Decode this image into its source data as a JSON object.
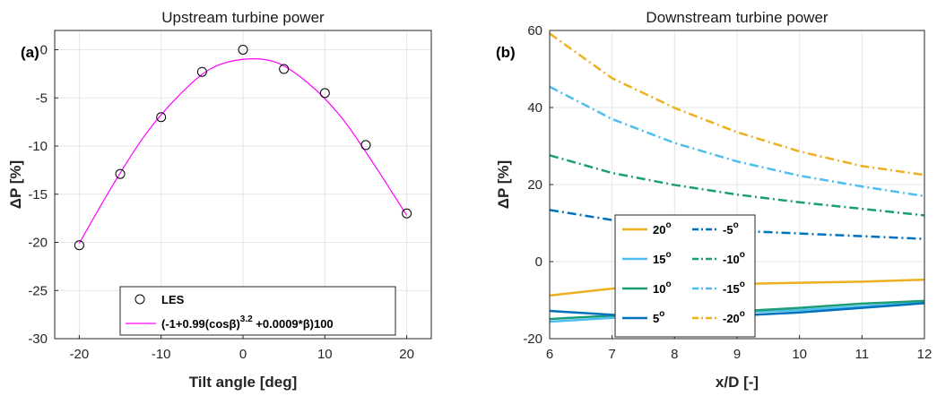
{
  "chart_data": [
    {
      "type": "scatter",
      "panel_label": "(a)",
      "title": "Upstream turbine power",
      "xlabel": "Tilt angle [deg]",
      "ylabel": "ΔP [%]",
      "xlim": [
        -23,
        23
      ],
      "ylim": [
        -30,
        2
      ],
      "xticks": [
        -20,
        -10,
        0,
        10,
        20
      ],
      "yticks": [
        0,
        -5,
        -10,
        -15,
        -20,
        -25,
        -30
      ],
      "grid": true,
      "legend_position": "bottom",
      "series": [
        {
          "name": "LES",
          "kind": "markers",
          "marker": "circle",
          "color": "#000000",
          "x": [
            -20,
            -15,
            -10,
            -5,
            0,
            5,
            10,
            15,
            20
          ],
          "y": [
            -20.3,
            -12.9,
            -7.0,
            -2.3,
            0.0,
            -2.0,
            -4.5,
            -9.9,
            -17.0
          ]
        },
        {
          "name": "(-1+0.99(cosβ)3.2 +0.0009*β)100",
          "name_base": "(-1+0.99(cosβ)",
          "name_sup": "3.2",
          "name_tail": " +0.0009*β)100",
          "kind": "line",
          "color": "#ff00ff",
          "x": [
            -20,
            -16,
            -12,
            -8,
            -4,
            0,
            4,
            8,
            12,
            16,
            20
          ],
          "y": [
            -20.1,
            -14.2,
            -8.9,
            -4.9,
            -2.0,
            -1.0,
            -1.3,
            -3.5,
            -7.0,
            -11.9,
            -17.2
          ]
        }
      ]
    },
    {
      "type": "line",
      "panel_label": "(b)",
      "title": "Downstream turbine power",
      "xlabel": "x/D [-]",
      "ylabel": "ΔP [%]",
      "xlim": [
        6,
        12
      ],
      "ylim": [
        -20,
        60
      ],
      "xticks": [
        6,
        7,
        8,
        9,
        10,
        11,
        12
      ],
      "yticks": [
        60,
        40,
        20,
        0,
        -20
      ],
      "grid": true,
      "legend_position": "lower-left inside",
      "x": [
        6,
        7,
        8,
        9,
        10,
        11,
        12
      ],
      "series": [
        {
          "name": "20",
          "color": "#EDB120",
          "dash": "solid",
          "values": [
            -8.8,
            -7.0,
            -6.3,
            -5.8,
            -5.5,
            -5.2,
            -4.7
          ]
        },
        {
          "name": "15",
          "color": "#4DBEEE",
          "dash": "solid",
          "values": [
            -15.6,
            -14.6,
            -13.9,
            -13.2,
            -12.6,
            -11.6,
            -10.6
          ]
        },
        {
          "name": "10",
          "color": "#1B9E77",
          "dash": "solid",
          "values": [
            -14.9,
            -14.0,
            -13.4,
            -12.9,
            -12.0,
            -10.9,
            -10.2
          ]
        },
        {
          "name": "5",
          "color": "#0072BD",
          "dash": "solid",
          "values": [
            -12.8,
            -13.8,
            -14.3,
            -14.0,
            -13.2,
            -12.0,
            -10.8
          ]
        },
        {
          "name": "-5",
          "color": "#0072BD",
          "dash": "dashdot",
          "values": [
            13.4,
            10.8,
            9.2,
            8.0,
            7.3,
            6.6,
            5.9
          ]
        },
        {
          "name": "-10",
          "color": "#1B9E77",
          "dash": "dashdot",
          "values": [
            27.6,
            23.0,
            19.9,
            17.4,
            15.4,
            13.7,
            12.0
          ]
        },
        {
          "name": "-15",
          "color": "#4DBEEE",
          "dash": "dashdot",
          "values": [
            45.4,
            37.0,
            30.8,
            26.0,
            22.3,
            19.5,
            17.0
          ]
        },
        {
          "name": "-20",
          "color": "#EDB120",
          "dash": "dashdot",
          "values": [
            59.2,
            47.6,
            39.9,
            33.6,
            28.6,
            24.8,
            22.5
          ]
        }
      ],
      "legend_sup": "o"
    }
  ]
}
